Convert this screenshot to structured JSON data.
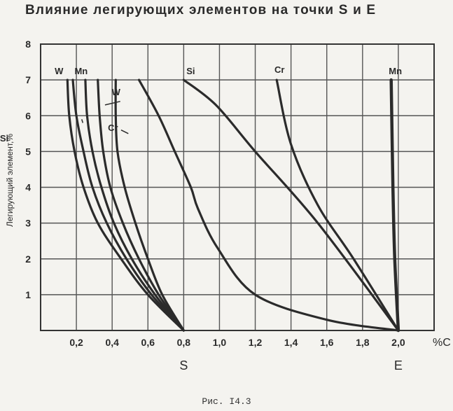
{
  "title": "Влияние легирующих элементов на точки S и E",
  "caption": "Рис. I4.3",
  "chart_data": {
    "type": "line",
    "title": "Влияние легирующих элементов на точки S и E",
    "xlabel": "%C",
    "ylabel": "Легирующий элемент,%",
    "xlim": [
      0,
      2.2
    ],
    "ylim": [
      0,
      8
    ],
    "x_ticks": [
      "0,2",
      "0,4",
      "0,6",
      "0,8",
      "1,0",
      "1,2",
      "1,4",
      "1,6",
      "1,8",
      "2,0"
    ],
    "y_ticks": [
      "1",
      "2",
      "3",
      "4",
      "5",
      "6",
      "7",
      "8"
    ],
    "point_labels": [
      {
        "text": "S",
        "x": 0.8
      },
      {
        "text": "E",
        "x": 2.0
      }
    ],
    "grid": true,
    "series": [
      {
        "name": "W",
        "point": "S",
        "label_color": "#222",
        "points": [
          [
            0.8,
            0
          ],
          [
            0.6,
            1
          ],
          [
            0.45,
            2
          ],
          [
            0.32,
            3
          ],
          [
            0.24,
            4
          ],
          [
            0.19,
            5
          ],
          [
            0.16,
            6
          ],
          [
            0.15,
            7
          ]
        ]
      },
      {
        "name": "Si",
        "point": "S",
        "label_color": "#222",
        "points": [
          [
            0.8,
            0
          ],
          [
            0.62,
            1
          ],
          [
            0.48,
            2
          ],
          [
            0.37,
            3
          ],
          [
            0.29,
            4
          ],
          [
            0.24,
            5
          ],
          [
            0.2,
            6
          ],
          [
            0.18,
            7
          ]
        ]
      },
      {
        "name": "Mn",
        "point": "S",
        "label_color": "#222",
        "points": [
          [
            0.8,
            0
          ],
          [
            0.64,
            1
          ],
          [
            0.51,
            2
          ],
          [
            0.41,
            3
          ],
          [
            0.34,
            4
          ],
          [
            0.29,
            5
          ],
          [
            0.26,
            6
          ],
          [
            0.25,
            7
          ]
        ]
      },
      {
        "name": "W",
        "point": "S",
        "label_color": "#222",
        "points": [
          [
            0.8,
            0
          ],
          [
            0.66,
            1
          ],
          [
            0.55,
            2
          ],
          [
            0.46,
            3
          ],
          [
            0.39,
            4
          ],
          [
            0.35,
            5
          ],
          [
            0.33,
            6
          ],
          [
            0.32,
            7
          ]
        ]
      },
      {
        "name": "Cr",
        "point": "S",
        "label_color": "#222",
        "points": [
          [
            0.8,
            0
          ],
          [
            0.68,
            1
          ],
          [
            0.6,
            2
          ],
          [
            0.53,
            3
          ],
          [
            0.47,
            4
          ],
          [
            0.43,
            5
          ],
          [
            0.42,
            6
          ],
          [
            0.42,
            7
          ]
        ]
      },
      {
        "name": "Si",
        "point": "S",
        "label_color": "#222",
        "points": [
          [
            0.8,
            0
          ],
          [
            0.66,
            1
          ],
          [
            0.5,
            2
          ],
          [
            0.4,
            3
          ],
          [
            0.95,
            4
          ],
          [
            0.62,
            5
          ],
          [
            0.56,
            6
          ],
          [
            0.5,
            7
          ]
        ]
      },
      {
        "name": "Si",
        "point": "E",
        "label_color": "#222",
        "points": [
          [
            2.0,
            0
          ],
          [
            1.6,
            0.3
          ],
          [
            1.2,
            1.0
          ],
          [
            0.99,
            2.3
          ],
          [
            0.88,
            3.4
          ],
          [
            0.84,
            4.0
          ],
          [
            0.75,
            5.0
          ],
          [
            0.66,
            6.0
          ],
          [
            0.55,
            7.0
          ]
        ]
      },
      {
        "name": "Si",
        "point": "E",
        "label_color": "#222",
        "points": [
          [
            2.0,
            0
          ],
          [
            1.55,
            3.0
          ],
          [
            1.2,
            5.0
          ],
          [
            0.98,
            6.3
          ],
          [
            0.8,
            7.0
          ]
        ]
      },
      {
        "name": "Cr",
        "point": "E",
        "label_color": "#222",
        "points": [
          [
            2.0,
            0
          ],
          [
            1.75,
            2.0
          ],
          [
            1.55,
            3.5
          ],
          [
            1.4,
            5.2
          ],
          [
            1.32,
            7.0
          ]
        ]
      },
      {
        "name": "Mn",
        "point": "E",
        "label_color": "#222",
        "points": [
          [
            2.0,
            0
          ],
          [
            1.98,
            2.0
          ],
          [
            1.97,
            4.0
          ],
          [
            1.96,
            7.0
          ]
        ]
      }
    ]
  }
}
